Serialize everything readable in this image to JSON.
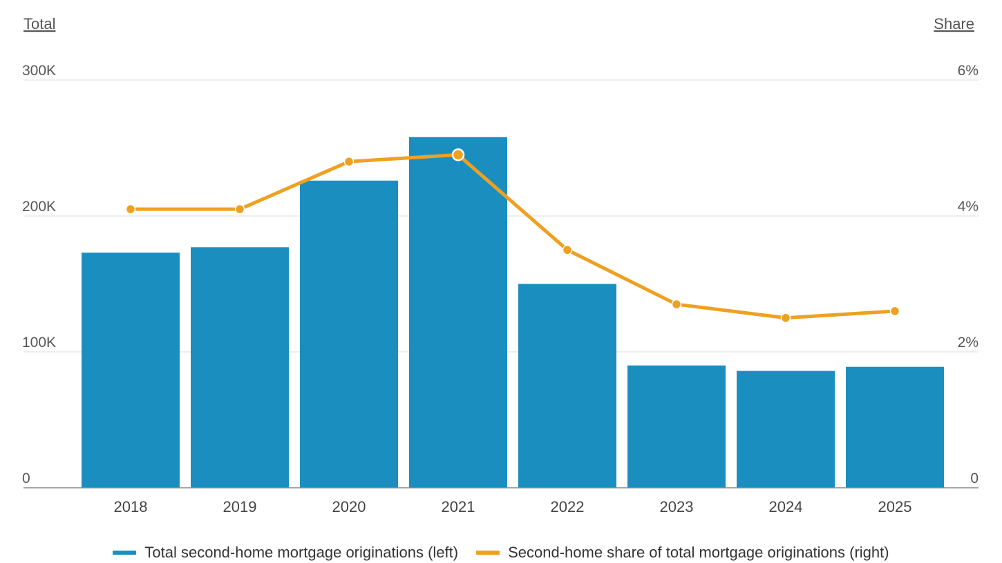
{
  "chart_data": {
    "type": "bar",
    "categories": [
      "2018",
      "2019",
      "2020",
      "2021",
      "2022",
      "2023",
      "2024",
      "2025"
    ],
    "left_axis": {
      "title": "Total",
      "ticks": [
        "0",
        "100K",
        "200K",
        "300K"
      ],
      "range": [
        0,
        300000
      ]
    },
    "right_axis": {
      "title": "Share",
      "ticks": [
        "0",
        "2%",
        "4%",
        "6%"
      ],
      "range": [
        0,
        6
      ]
    },
    "series": [
      {
        "name": "Total second-home mortgage originations (left)",
        "type": "bar",
        "axis": "left",
        "color": "#1a8fbf",
        "values": [
          173000,
          177000,
          226000,
          258000,
          150000,
          90000,
          86000,
          89000
        ]
      },
      {
        "name": "Second-home share of total mortgage originations (right)",
        "type": "line",
        "axis": "right",
        "color": "#f0a020",
        "values": [
          4.1,
          4.1,
          4.8,
          4.9,
          3.5,
          2.7,
          2.5,
          2.6
        ],
        "highlighted_category": "2021"
      }
    ],
    "grid": true,
    "legend_position": "bottom"
  }
}
